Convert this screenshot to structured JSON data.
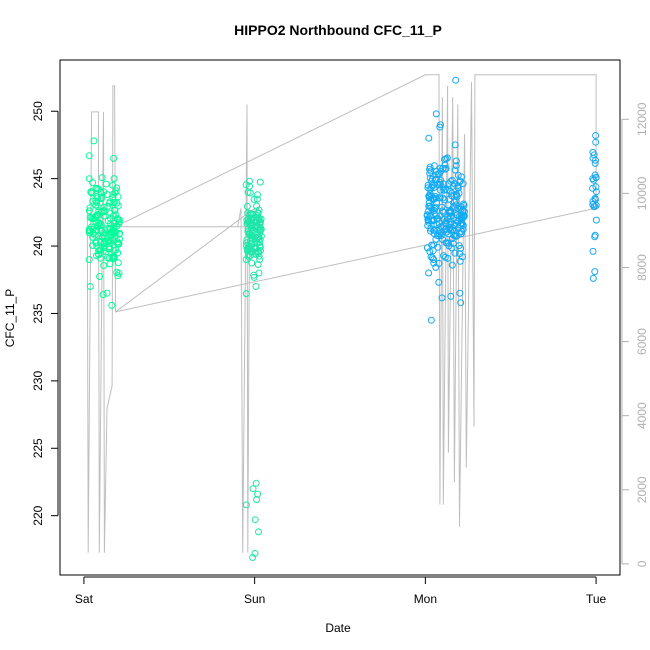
{
  "chart_data": {
    "type": "scatter",
    "title": "HIPPO2 Northbound CFC_11_P",
    "xlabel": "Date",
    "ylabel": "CFC_11_P",
    "x_ticks": [
      "Sat",
      "Sun",
      "Mon",
      "Tue"
    ],
    "x_tick_values": [
      0,
      1,
      2,
      3
    ],
    "xlim": [
      -0.14,
      3.14
    ],
    "y_ticks": [
      220,
      225,
      230,
      235,
      240,
      245,
      250
    ],
    "ylim": [
      215.6,
      253.8
    ],
    "y2_ticks": [
      0,
      2000,
      4000,
      6000,
      8000,
      10000,
      12000
    ],
    "y2lim": [
      -300,
      13600
    ],
    "grid": false,
    "legend": "none",
    "colors": {
      "sat": "#00ff99",
      "sun": "#1fe6a8",
      "mon": "#11aaf4",
      "tue": "#1aa9f0",
      "altitude_line": "#bebebe"
    },
    "clusters": [
      {
        "name": "Sat",
        "color_key": "sat",
        "x_center": 0.12,
        "x_spread": 0.09,
        "n": 160,
        "y_center": 241.6,
        "y_sd": 1.6,
        "outliers": [
          246.5,
          245.0,
          236.4,
          235.6,
          236.5,
          237.0,
          237.8,
          247.8,
          246.7
        ]
      },
      {
        "name": "Sun",
        "color_key": "sun",
        "x_center": -0.005,
        "x_spread": 0.045,
        "offset_day": 1,
        "n": 120,
        "y_center": 241.0,
        "y_sd": 1.3,
        "outliers": [
          237.0,
          244.8,
          222.4,
          222.0,
          221.6,
          221.2,
          220.8,
          219.7,
          218.8,
          217.2,
          216.9
        ]
      },
      {
        "name": "Mon",
        "color_key": "mon",
        "x_center": 0.12,
        "x_spread": 0.11,
        "offset_day": 2,
        "n": 230,
        "y_center": 242.6,
        "y_sd": 1.9,
        "outliers": [
          234.5,
          236.5,
          237.3,
          249.8,
          252.3,
          249.0,
          248.0,
          247.5,
          235.8,
          238.0
        ]
      },
      {
        "name": "Tue",
        "color_key": "tue",
        "x_center": -0.01,
        "x_spread": 0.012,
        "offset_day": 3,
        "n": 25,
        "y_center": 243.8,
        "y_sd": 2.0,
        "outliers": [
          237.6,
          239.6,
          248.2,
          247.7
        ]
      }
    ],
    "altitude_series_note": "",
    "altitude_points": [
      [
        0.02,
        9600
      ],
      [
        0.025,
        300
      ],
      [
        0.045,
        12200
      ],
      [
        0.085,
        12200
      ],
      [
        0.09,
        300
      ],
      [
        0.115,
        12200
      ],
      [
        0.12,
        300
      ],
      [
        0.135,
        4200
      ],
      [
        0.165,
        4800
      ],
      [
        0.17,
        12900
      ],
      [
        0.18,
        12900
      ],
      [
        0.185,
        6800
      ],
      [
        1.0,
        9600
      ],
      [
        1.0,
        9100
      ],
      [
        0.9,
        9100
      ],
      [
        0.92,
        9600
      ],
      [
        0.93,
        300
      ],
      [
        0.955,
        12400
      ],
      [
        0.96,
        300
      ],
      [
        0.97,
        9100
      ],
      [
        0.185,
        9100
      ],
      [
        2.0,
        13200
      ],
      [
        2.08,
        13200
      ],
      [
        2.085,
        1600
      ],
      [
        2.1,
        12600
      ],
      [
        2.105,
        1600
      ],
      [
        2.13,
        12900
      ],
      [
        2.135,
        3000
      ],
      [
        2.16,
        12600
      ],
      [
        2.17,
        2200
      ],
      [
        2.19,
        12400
      ],
      [
        2.2,
        1000
      ],
      [
        2.23,
        11600
      ],
      [
        2.24,
        2600
      ],
      [
        2.27,
        13000
      ],
      [
        2.285,
        3700
      ],
      [
        2.29,
        13200
      ],
      [
        3.0,
        13200
      ],
      [
        3.0,
        9600
      ],
      [
        0.185,
        6800
      ]
    ]
  }
}
